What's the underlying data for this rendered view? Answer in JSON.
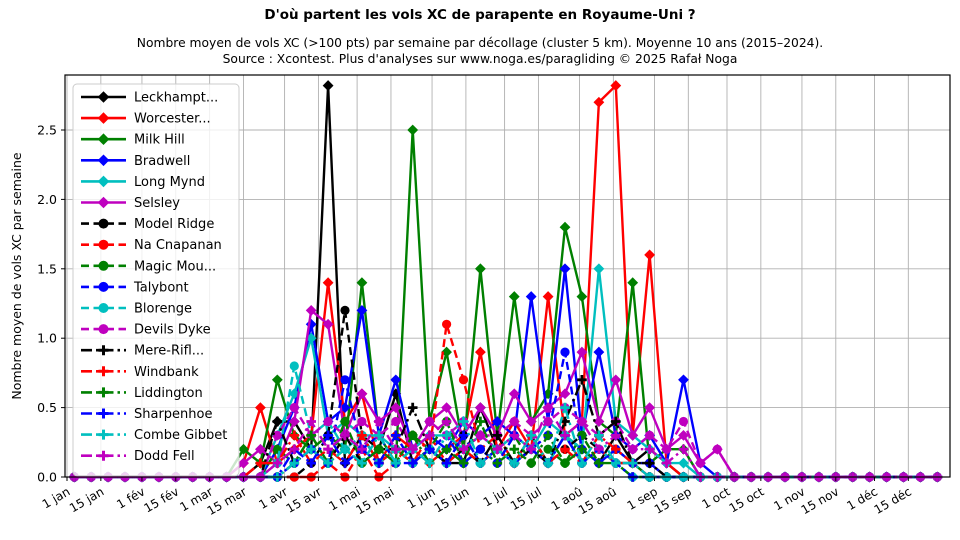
{
  "header": {
    "title": "D'où partent les vols XC de parapente en Royaume-Uni ?",
    "subtitle_line1": "Nombre moyen de vols XC (>100 pts) par semaine par décollage (cluster 5 km). Moyenne 10 ans (2015–2024).",
    "subtitle_line2": "Source : Xcontest. Plus d'analyses sur www.noga.es/paragliding © 2025 Rafał Noga"
  },
  "chart_data": {
    "type": "line",
    "title": "D'où partent les vols XC de parapente en Royaume-Uni ?",
    "xlabel": "",
    "ylabel": "Nombre moyen de vols XC par semaine",
    "ylim": [
      0,
      2.9
    ],
    "yticks": [
      0.0,
      0.5,
      1.0,
      1.5,
      2.0,
      2.5
    ],
    "grid": true,
    "legend_position": "upper-left",
    "x_description": "52 weekly data points per series; x value = day-of-year of week (day = 7*(week-1)+4)",
    "xtick_days": [
      1,
      15,
      32,
      46,
      60,
      74,
      91,
      105,
      121,
      135,
      152,
      166,
      182,
      196,
      213,
      227,
      244,
      258,
      274,
      288,
      305,
      319,
      335,
      349
    ],
    "xtick_labels": [
      "1 jan",
      "15 jan",
      "1 fév",
      "15 fév",
      "1 mar",
      "15 mar",
      "1 avr",
      "15 avr",
      "1 mai",
      "15 mai",
      "1 jun",
      "15 jun",
      "1 jul",
      "15 jul",
      "1 aoû",
      "15 aoû",
      "1 sep",
      "15 sep",
      "1 oct",
      "15 oct",
      "1 nov",
      "15 nov",
      "1 déc",
      "15 déc"
    ],
    "series": [
      {
        "name": "Leckhampt...",
        "color": "#000000",
        "line": "solid",
        "marker": "diamond",
        "values": [
          0,
          0,
          0,
          0,
          0,
          0,
          0,
          0,
          0,
          0,
          0,
          0.1,
          0.4,
          0.4,
          0.2,
          2.82,
          0.1,
          0.3,
          0.2,
          0.6,
          0.1,
          0.2,
          0.1,
          0.1,
          0.5,
          0.2,
          0.1,
          0.3,
          0.1,
          0.3,
          0.2,
          0.1,
          0.3,
          0.1,
          0.2,
          0.1,
          0,
          0,
          0,
          0,
          0,
          0,
          0,
          0,
          0,
          0,
          0,
          0,
          0,
          0,
          0,
          0
        ]
      },
      {
        "name": "Worcester...",
        "color": "#ff0000",
        "line": "solid",
        "marker": "diamond",
        "values": [
          0,
          0,
          0,
          0,
          0,
          0,
          0,
          0,
          0,
          0,
          0.1,
          0.5,
          0.1,
          0.2,
          0.3,
          1.4,
          0.4,
          0.6,
          0.1,
          0.3,
          0.2,
          0.1,
          0.2,
          0.3,
          0.9,
          0.2,
          0.4,
          0.2,
          1.3,
          0.3,
          0.4,
          2.7,
          2.82,
          0.3,
          1.6,
          0.1,
          0,
          0,
          0,
          0,
          0,
          0,
          0,
          0,
          0,
          0,
          0,
          0,
          0,
          0,
          0,
          0
        ]
      },
      {
        "name": "Milk Hill",
        "color": "#008000",
        "line": "solid",
        "marker": "diamond",
        "values": [
          0,
          0,
          0,
          0,
          0,
          0,
          0,
          0,
          0,
          0,
          0.2,
          0.1,
          0.7,
          0.3,
          0.2,
          0.3,
          0.2,
          1.4,
          0.3,
          0.1,
          2.5,
          0.4,
          0.9,
          0.2,
          1.5,
          0.3,
          1.3,
          0.4,
          0.6,
          1.8,
          1.3,
          0.4,
          0.3,
          1.4,
          0.1,
          0.2,
          0.2,
          0,
          0,
          0,
          0,
          0,
          0,
          0,
          0,
          0,
          0,
          0,
          0,
          0,
          0,
          0
        ]
      },
      {
        "name": "Bradwell",
        "color": "#0000ff",
        "line": "solid",
        "marker": "diamond",
        "values": [
          0,
          0,
          0,
          0,
          0,
          0,
          0,
          0,
          0,
          0,
          0,
          0,
          0.2,
          0.5,
          1.1,
          0.4,
          0.5,
          1.2,
          0.3,
          0.7,
          0.2,
          0.3,
          0.2,
          0.4,
          0.3,
          0.4,
          0.3,
          1.3,
          0.4,
          1.5,
          0.3,
          0.9,
          0.3,
          0.2,
          0.3,
          0.1,
          0.7,
          0.1,
          0,
          0,
          0,
          0,
          0,
          0,
          0,
          0,
          0,
          0,
          0,
          0,
          0,
          0
        ]
      },
      {
        "name": "Long Mynd",
        "color": "#00bfbf",
        "line": "solid",
        "marker": "diamond",
        "values": [
          0,
          0,
          0,
          0,
          0,
          0,
          0,
          0,
          0,
          0,
          0,
          0,
          0.3,
          0.6,
          1.0,
          0.3,
          0.4,
          0.3,
          0.3,
          0.2,
          0.2,
          0.3,
          0.3,
          0.2,
          0.3,
          0.2,
          0.3,
          0.2,
          0.4,
          0.3,
          0.2,
          1.5,
          0.4,
          0.3,
          0.2,
          0.1,
          0.1,
          0,
          0,
          0,
          0,
          0,
          0,
          0,
          0,
          0,
          0,
          0,
          0,
          0,
          0,
          0
        ]
      },
      {
        "name": "Selsley",
        "color": "#bf00bf",
        "line": "solid",
        "marker": "diamond",
        "values": [
          0,
          0,
          0,
          0,
          0,
          0,
          0,
          0,
          0,
          0,
          0.1,
          0.2,
          0.1,
          0.4,
          1.2,
          1.1,
          0.3,
          0.6,
          0.4,
          0.5,
          0.2,
          0.4,
          0.5,
          0.3,
          0.5,
          0.3,
          0.6,
          0.4,
          0.5,
          0.6,
          0.9,
          0.4,
          0.7,
          0.3,
          0.5,
          0.2,
          0.3,
          0.1,
          0.2,
          0,
          0,
          0,
          0,
          0,
          0,
          0,
          0,
          0,
          0,
          0,
          0,
          0
        ]
      },
      {
        "name": "Model Ridge",
        "color": "#000000",
        "line": "dashed",
        "marker": "circle",
        "values": [
          0,
          0,
          0,
          0,
          0,
          0,
          0,
          0,
          0,
          0,
          0,
          0,
          0,
          0,
          0.1,
          0.3,
          1.2,
          0.3,
          0.1,
          0.2,
          0.1,
          0.2,
          0.1,
          0.3,
          0.1,
          0.2,
          0.1,
          0.3,
          0.1,
          0.2,
          0.3,
          0.2,
          0.1,
          0.1,
          0.1,
          0,
          0,
          0,
          0,
          0,
          0,
          0,
          0,
          0,
          0,
          0,
          0,
          0,
          0,
          0,
          0,
          0
        ]
      },
      {
        "name": "Na Cnapanan",
        "color": "#ff0000",
        "line": "dashed",
        "marker": "circle",
        "values": [
          0,
          0,
          0,
          0,
          0,
          0,
          0,
          0,
          0,
          0,
          0,
          0,
          0,
          0,
          0,
          0.1,
          0,
          0.2,
          0,
          0.1,
          0.3,
          0.2,
          1.1,
          0.7,
          0.2,
          0.3,
          0.1,
          0.2,
          0.1,
          0.3,
          0.1,
          0.2,
          0.1,
          0.1,
          0,
          0,
          0,
          0,
          0,
          0,
          0,
          0,
          0,
          0,
          0,
          0,
          0,
          0,
          0,
          0,
          0,
          0
        ]
      },
      {
        "name": "Magic Mou...",
        "color": "#008000",
        "line": "dashed",
        "marker": "circle",
        "values": [
          0,
          0,
          0,
          0,
          0,
          0,
          0,
          0,
          0,
          0,
          0,
          0,
          0.2,
          0.1,
          0.3,
          0.1,
          0.4,
          0.1,
          0.2,
          0.1,
          0.3,
          0.2,
          0.4,
          0.1,
          0.2,
          0.1,
          0.3,
          0.1,
          0.2,
          0.1,
          0.3,
          0.1,
          0.2,
          0.1,
          0,
          0,
          0,
          0,
          0,
          0,
          0,
          0,
          0,
          0,
          0,
          0,
          0,
          0,
          0,
          0,
          0,
          0
        ]
      },
      {
        "name": "Talybont",
        "color": "#0000ff",
        "line": "dashed",
        "marker": "circle",
        "values": [
          0,
          0,
          0,
          0,
          0,
          0,
          0,
          0,
          0,
          0,
          0,
          0,
          0,
          0.1,
          0.2,
          0.1,
          0.7,
          0.2,
          0.3,
          0.1,
          0.1,
          0.2,
          0.3,
          0.1,
          0.2,
          0.1,
          0.3,
          0.2,
          0.3,
          0.9,
          0.2,
          0.1,
          0.2,
          0.1,
          0.1,
          0,
          0,
          0,
          0,
          0,
          0,
          0,
          0,
          0,
          0,
          0,
          0,
          0,
          0,
          0,
          0,
          0
        ]
      },
      {
        "name": "Blorenge",
        "color": "#00bfbf",
        "line": "dashed",
        "marker": "circle",
        "values": [
          0,
          0,
          0,
          0,
          0,
          0,
          0,
          0,
          0,
          0,
          0,
          0,
          0.1,
          0.8,
          0.3,
          0.4,
          0.2,
          0.3,
          0.1,
          0.2,
          0.1,
          0.2,
          0.1,
          0.2,
          0.1,
          0.2,
          0.1,
          0.2,
          0.1,
          0.3,
          0.1,
          0.2,
          0.1,
          0,
          0,
          0,
          0,
          0,
          0,
          0,
          0,
          0,
          0,
          0,
          0,
          0,
          0,
          0,
          0,
          0,
          0,
          0
        ]
      },
      {
        "name": "Devils Dyke",
        "color": "#bf00bf",
        "line": "dashed",
        "marker": "circle",
        "values": [
          0,
          0,
          0,
          0,
          0,
          0,
          0,
          0,
          0,
          0,
          0,
          0,
          0.3,
          0.5,
          0.3,
          0.4,
          0.3,
          0.4,
          0.3,
          0.4,
          0.2,
          0.4,
          0.3,
          0.4,
          0.3,
          0.3,
          0.4,
          0.3,
          0.4,
          0.5,
          0.4,
          0.3,
          0.4,
          0.2,
          0.3,
          0.2,
          0.4,
          0.1,
          0.2,
          0,
          0,
          0,
          0,
          0,
          0,
          0,
          0,
          0,
          0,
          0,
          0,
          0
        ]
      },
      {
        "name": "Mere-Rifl...",
        "color": "#000000",
        "line": "dashdot",
        "marker": "plus",
        "values": [
          0,
          0,
          0,
          0,
          0,
          0,
          0,
          0,
          0,
          0,
          0,
          0,
          0.4,
          0.1,
          0.2,
          0.1,
          0.3,
          0.1,
          0.2,
          0.2,
          0.5,
          0.2,
          0.1,
          0.2,
          0.1,
          0.3,
          0.1,
          0.2,
          0.1,
          0.4,
          0.7,
          0.3,
          0.4,
          0.1,
          0.1,
          0,
          0,
          0,
          0,
          0,
          0,
          0,
          0,
          0,
          0,
          0,
          0,
          0,
          0,
          0,
          0,
          0
        ]
      },
      {
        "name": "Windbank",
        "color": "#ff0000",
        "line": "dashdot",
        "marker": "plus",
        "values": [
          0,
          0,
          0,
          0,
          0,
          0,
          0,
          0,
          0,
          0,
          0,
          0.1,
          0.1,
          0.3,
          0.1,
          0.2,
          0.1,
          0.3,
          0.1,
          0.2,
          0.1,
          0.3,
          0.1,
          0.2,
          0.1,
          0.2,
          0.1,
          0.3,
          0.1,
          0.2,
          0.1,
          0.3,
          0.2,
          0.1,
          0,
          0,
          0,
          0,
          0,
          0,
          0,
          0,
          0,
          0,
          0,
          0,
          0,
          0,
          0,
          0,
          0,
          0
        ]
      },
      {
        "name": "Liddington",
        "color": "#008000",
        "line": "dashdot",
        "marker": "plus",
        "values": [
          0,
          0,
          0,
          0,
          0,
          0,
          0,
          0,
          0,
          0,
          0,
          0,
          0,
          0.1,
          0.3,
          0.1,
          0.2,
          0.1,
          0.2,
          0.1,
          0.3,
          0.1,
          0.2,
          0.1,
          0.4,
          0.1,
          0.2,
          0.1,
          0.3,
          0.1,
          0.2,
          0.1,
          0.1,
          0,
          0,
          0,
          0,
          0,
          0,
          0,
          0,
          0,
          0,
          0,
          0,
          0,
          0,
          0,
          0,
          0,
          0,
          0
        ]
      },
      {
        "name": "Sharpenhoe",
        "color": "#0000ff",
        "line": "dashdot",
        "marker": "plus",
        "values": [
          0,
          0,
          0,
          0,
          0,
          0,
          0,
          0,
          0,
          0,
          0,
          0,
          0,
          0.2,
          0.1,
          0.3,
          0.1,
          0.2,
          0.1,
          0.3,
          0.1,
          0.2,
          0.1,
          0.3,
          0.1,
          0.2,
          0.1,
          0.2,
          0.1,
          0.3,
          0.1,
          0.2,
          0.1,
          0,
          0,
          0,
          0,
          0,
          0,
          0,
          0,
          0,
          0,
          0,
          0,
          0,
          0,
          0,
          0,
          0,
          0,
          0
        ]
      },
      {
        "name": "Combe Gibbet",
        "color": "#00bfbf",
        "line": "dashdot",
        "marker": "plus",
        "values": [
          0,
          0,
          0,
          0,
          0,
          0,
          0,
          0,
          0,
          0,
          0,
          0,
          0,
          0.1,
          0.2,
          0.1,
          0.2,
          0.1,
          0.3,
          0.1,
          0.2,
          0.1,
          0.3,
          0.4,
          0.1,
          0.2,
          0.1,
          0.3,
          0.1,
          0.5,
          0.1,
          0.3,
          0.1,
          0.1,
          0,
          0,
          0,
          0,
          0,
          0,
          0,
          0,
          0,
          0,
          0,
          0,
          0,
          0,
          0,
          0,
          0,
          0
        ]
      },
      {
        "name": "Dodd Fell",
        "color": "#bf00bf",
        "line": "dashdot",
        "marker": "plus",
        "values": [
          0,
          0,
          0,
          0,
          0,
          0,
          0,
          0,
          0,
          0,
          0,
          0,
          0.1,
          0.2,
          0.4,
          0.2,
          0.3,
          0.2,
          0.4,
          0.2,
          0.2,
          0.3,
          0.4,
          0.2,
          0.3,
          0.2,
          0.3,
          0.2,
          0.5,
          0.3,
          0.4,
          0.2,
          0.3,
          0.2,
          0.2,
          0.1,
          0.2,
          0,
          0,
          0,
          0,
          0,
          0,
          0,
          0,
          0,
          0,
          0,
          0,
          0,
          0,
          0
        ]
      }
    ]
  }
}
